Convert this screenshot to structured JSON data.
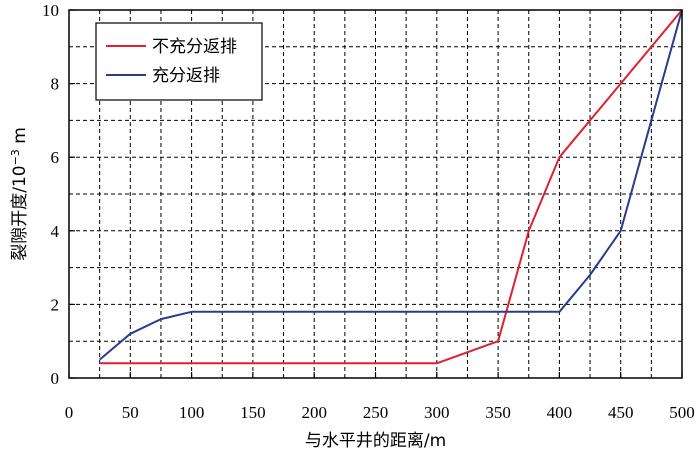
{
  "chart_data": {
    "type": "line",
    "xlabel": "与水平井的距离/m",
    "ylabel_main": "裂隙开度/10",
    "ylabel_exp": "−3",
    "ylabel_unit": " m",
    "xlim": [
      0,
      500
    ],
    "ylim": [
      0,
      10
    ],
    "xticks": [
      0,
      50,
      100,
      150,
      200,
      250,
      300,
      350,
      400,
      450,
      500
    ],
    "yticks": [
      0,
      2,
      4,
      6,
      8,
      10
    ],
    "grid": true,
    "legend_position": "top-left",
    "series": [
      {
        "name": "不充分返排",
        "color": "#e0202e",
        "points": [
          [
            25,
            0.4
          ],
          [
            50,
            0.4
          ],
          [
            100,
            0.4
          ],
          [
            150,
            0.4
          ],
          [
            200,
            0.4
          ],
          [
            250,
            0.4
          ],
          [
            300,
            0.4
          ],
          [
            350,
            1.0
          ],
          [
            375,
            4.0
          ],
          [
            400,
            6.0
          ],
          [
            450,
            8.0
          ],
          [
            500,
            10.0
          ]
        ]
      },
      {
        "name": "充分返排",
        "color": "#2b3a8f",
        "points": [
          [
            25,
            0.5
          ],
          [
            50,
            1.2
          ],
          [
            75,
            1.6
          ],
          [
            100,
            1.8
          ],
          [
            150,
            1.8
          ],
          [
            200,
            1.8
          ],
          [
            250,
            1.8
          ],
          [
            300,
            1.8
          ],
          [
            350,
            1.8
          ],
          [
            400,
            1.8
          ],
          [
            425,
            2.8
          ],
          [
            450,
            4.0
          ],
          [
            500,
            10.0
          ]
        ]
      }
    ]
  }
}
